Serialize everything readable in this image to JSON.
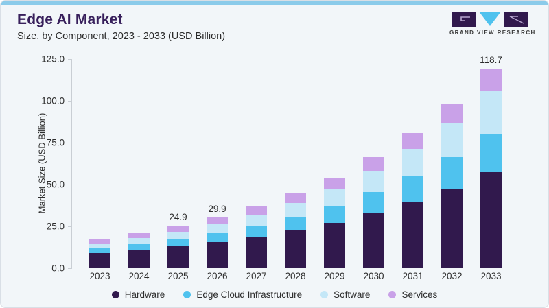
{
  "header": {
    "title": "Edge AI Market",
    "subtitle": "Size, by Component, 2023 - 2033 (USD Billion)"
  },
  "logo": {
    "text": "GRAND VIEW RESEARCH"
  },
  "colors": {
    "accent_strip": "#8bcbea",
    "title": "#38205c",
    "background": "#f2f6f9",
    "axis": "#c9ced4",
    "hardware": "#31194d",
    "edge_cloud_infrastructure": "#4fc2ee",
    "software": "#c4e7f7",
    "services": "#c9a1e8"
  },
  "chart_data": {
    "type": "bar",
    "stacked": true,
    "title": "Edge AI Market",
    "subtitle": "Size, by Component, 2023 - 2033 (USD Billion)",
    "xlabel": "",
    "ylabel": "Market Size (USD Billion)",
    "ylim": [
      0,
      125
    ],
    "ytick_labels": [
      "0.0",
      "25.0",
      "50.0",
      "75.0",
      "100.0",
      "125.0"
    ],
    "ytick_values": [
      0,
      25,
      50,
      75,
      100,
      125
    ],
    "grid": false,
    "legend_position": "bottom",
    "categories": [
      "2023",
      "2024",
      "2025",
      "2026",
      "2027",
      "2028",
      "2029",
      "2030",
      "2031",
      "2032",
      "2033"
    ],
    "series": [
      {
        "name": "Hardware",
        "color": "#31194d",
        "values": [
          8.8,
          10.6,
          12.7,
          15.2,
          18.3,
          22.1,
          26.7,
          32.5,
          39.2,
          47.3,
          57.0
        ]
      },
      {
        "name": "Edge Cloud Infrastructure",
        "color": "#4fc2ee",
        "values": [
          3.0,
          3.6,
          4.4,
          5.4,
          6.6,
          8.1,
          10.0,
          12.4,
          15.2,
          18.7,
          22.9
        ]
      },
      {
        "name": "Software",
        "color": "#c4e7f7",
        "values": [
          2.6,
          3.3,
          4.2,
          5.2,
          6.5,
          8.2,
          10.3,
          13.1,
          16.4,
          20.6,
          25.8
        ]
      },
      {
        "name": "Services",
        "color": "#c9a1e8",
        "values": [
          2.5,
          3.0,
          3.6,
          4.1,
          4.9,
          5.8,
          6.8,
          8.0,
          9.5,
          11.1,
          13.0
        ]
      }
    ],
    "totals": [
      16.9,
      20.5,
      24.9,
      29.9,
      36.3,
      44.2,
      53.8,
      66.0,
      80.3,
      97.7,
      118.7
    ],
    "bar_value_labels": [
      "",
      "",
      "24.9",
      "29.9",
      "",
      "",
      "",
      "",
      "",
      "",
      "118.7"
    ]
  }
}
